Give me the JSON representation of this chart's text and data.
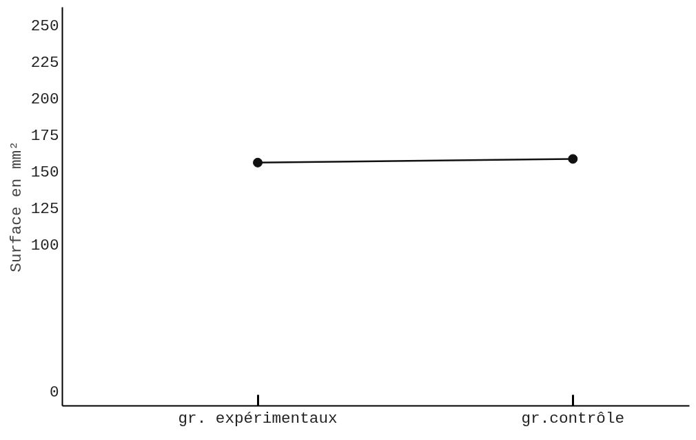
{
  "chart_data": {
    "type": "line",
    "ylabel": "Surface en mm²",
    "categories": [
      "gr. expérimentaux",
      "gr.contrôle"
    ],
    "series": [
      {
        "color": "#111111",
        "values": [
          156,
          158.5
        ]
      }
    ],
    "ylim": [
      -10,
      262
    ],
    "yticks": [
      0,
      100,
      125,
      150,
      175,
      200,
      225,
      250
    ],
    "grid": false,
    "marker": "circle",
    "line_style": "solid"
  }
}
